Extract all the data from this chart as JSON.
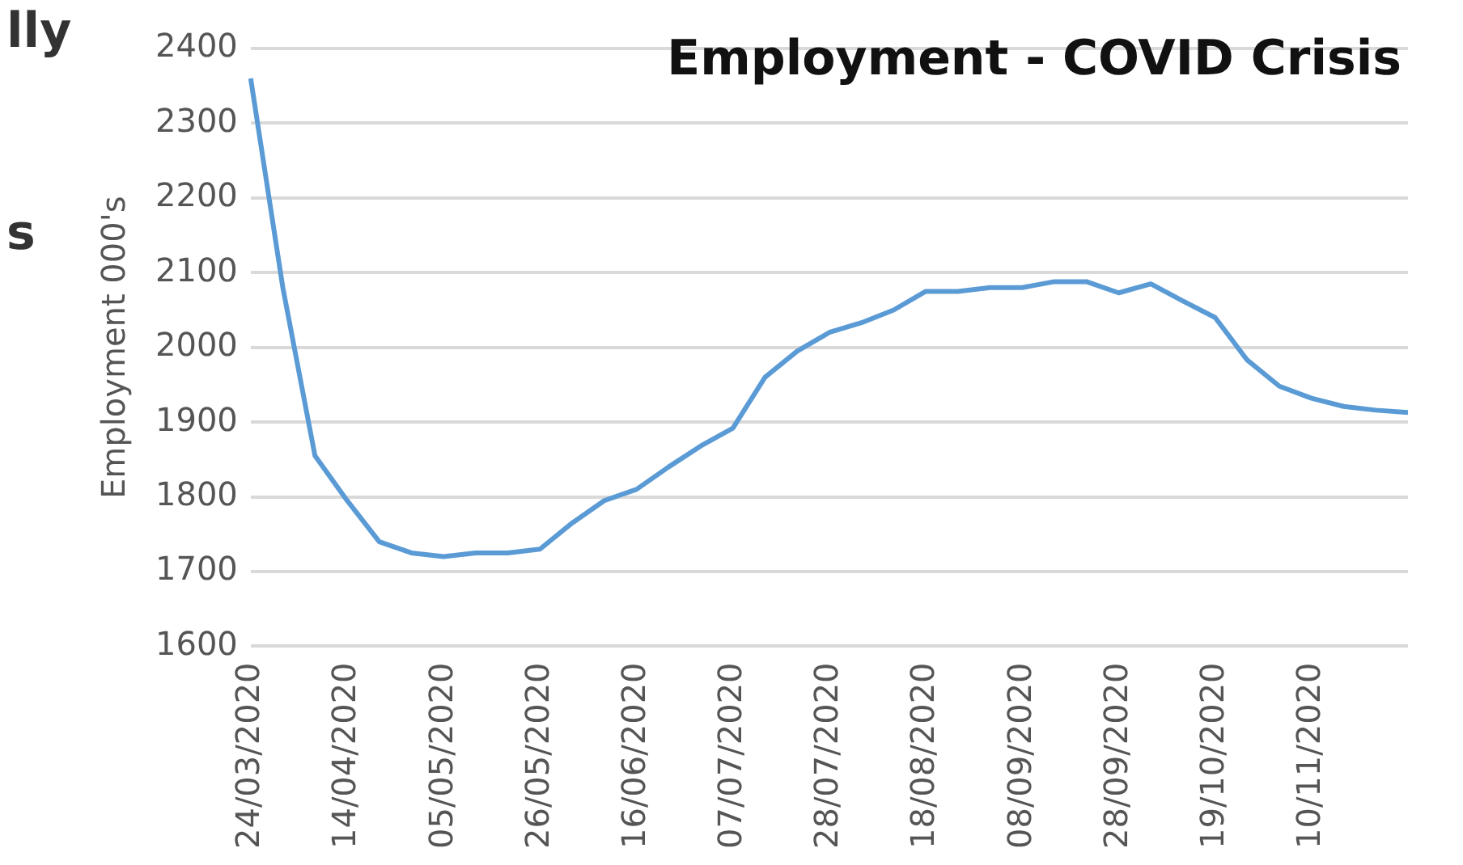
{
  "chart_data": {
    "type": "line",
    "title": "Employment - COVID Crisis",
    "ylabel": "Employment 000's",
    "categories": [
      "24/03/2020",
      null,
      null,
      "14/04/2020",
      null,
      null,
      "05/05/2020",
      null,
      null,
      "26/05/2020",
      null,
      null,
      "16/06/2020",
      null,
      null,
      "07/07/2020",
      null,
      null,
      "28/07/2020",
      null,
      null,
      "18/08/2020",
      null,
      null,
      "08/09/2020",
      null,
      null,
      "28/09/2020",
      null,
      null,
      "19/10/2020",
      null,
      null,
      "10/11/2020",
      null,
      null,
      null
    ],
    "series": [
      {
        "color": "#5b9bd5",
        "values": [
          2360,
          2080,
          1855,
          1795,
          1740,
          1725,
          1720,
          1725,
          1725,
          1730,
          1765,
          1795,
          1810,
          1840,
          1868,
          1892,
          1960,
          1995,
          2020,
          2033,
          2050,
          2075,
          2075,
          2080,
          2080,
          2088,
          2088,
          2073,
          2085,
          2062,
          2040,
          1983,
          1948,
          1932,
          1921,
          1916,
          1913
        ]
      }
    ],
    "ylim": [
      1600,
      2400
    ],
    "yticks": [
      1600,
      1700,
      1800,
      1900,
      2000,
      2100,
      2200,
      2300,
      2400
    ],
    "grid": "y",
    "legend": false,
    "marker": "none",
    "line_style": "solid",
    "annotations": [
      "lly",
      "s"
    ]
  }
}
